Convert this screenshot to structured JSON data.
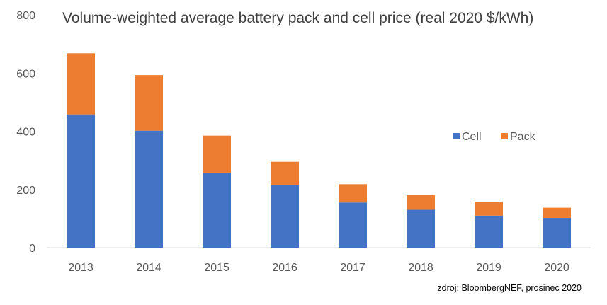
{
  "chart_data": {
    "type": "bar",
    "stacked": true,
    "title": "Volume-weighted average battery pack and cell price (real 2020 $/kWh)",
    "xlabel": "",
    "ylabel": "",
    "categories": [
      "2013",
      "2014",
      "2015",
      "2016",
      "2017",
      "2018",
      "2019",
      "2020"
    ],
    "series": [
      {
        "name": "Cell",
        "values": [
          458,
          402,
          257,
          215,
          155,
          130,
          110,
          102
        ],
        "color": "#4472C4"
      },
      {
        "name": "Pack",
        "values": [
          210,
          191,
          128,
          80,
          63,
          50,
          48,
          35
        ],
        "color": "#ED7D31"
      }
    ],
    "totals": [
      668,
      593,
      385,
      295,
      218,
      180,
      158,
      137
    ],
    "ylim": [
      0,
      800
    ],
    "yticks": [
      0,
      200,
      400,
      600,
      800
    ],
    "grid": false,
    "legend": "right",
    "source": "zdroj: BloombergNEF, prosinec 2020"
  }
}
